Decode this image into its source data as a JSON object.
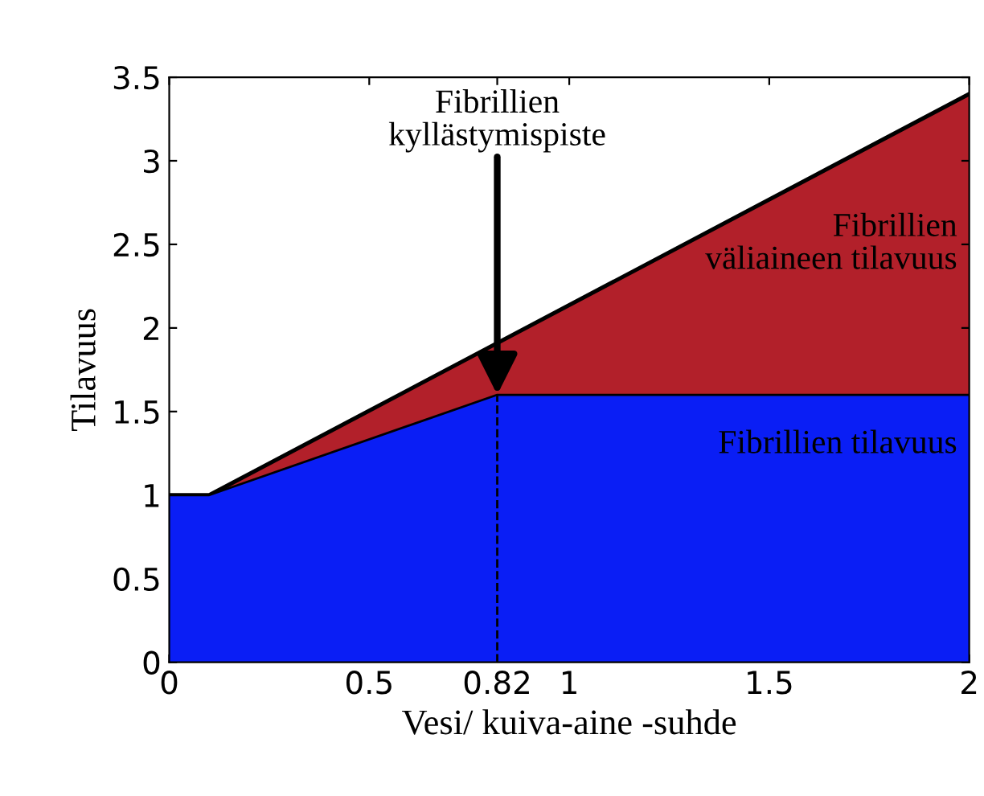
{
  "chart_data": {
    "type": "area",
    "xlabel": "Vesi/ kuiva-aine -suhde",
    "ylabel": "Tilavuus",
    "series": [
      {
        "name": "Fibrillien\nväliaineen tilavuus",
        "color": "#b2202a",
        "x": [
          0,
          0.1,
          2
        ],
        "values": [
          1,
          1,
          3.4
        ]
      },
      {
        "name": "Fibrillien tilavuus",
        "color": "#0a1ef5",
        "x": [
          0,
          0.1,
          0.82,
          2
        ],
        "values": [
          1,
          1,
          1.6,
          1.6
        ]
      }
    ],
    "annotations": [
      {
        "text": "Fibrillien\nkyllästymispiste",
        "x": 0.82,
        "y": 1.6
      }
    ],
    "ref_lines": [
      {
        "axis": "x",
        "value": 0.82,
        "label": null,
        "line_style": "dashed",
        "color": "#000000"
      }
    ],
    "xlim": [
      0,
      2
    ],
    "ylim": [
      0,
      3.5
    ],
    "xticks": [
      0,
      0.5,
      0.82,
      1,
      1.5,
      2
    ],
    "yticks": [
      0,
      0.5,
      1,
      1.5,
      2,
      2.5,
      3,
      3.5
    ],
    "grid": false,
    "legend": "right"
  }
}
